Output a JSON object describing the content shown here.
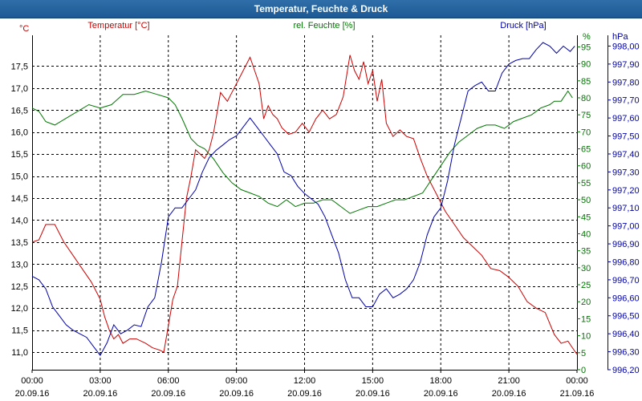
{
  "window": {
    "title": "Temperatur, Feuchte & Druck"
  },
  "colors": {
    "temperature": "#cc0000",
    "humidity": "#007700",
    "pressure": "#0000aa",
    "grid": "#000000",
    "axis_text": "#000000"
  },
  "chart_data": {
    "type": "line",
    "title": "Temperatur, Feuchte & Druck",
    "x_ticks": [
      {
        "h": 0,
        "time": "00:00",
        "date": "20.09.16"
      },
      {
        "h": 3,
        "time": "03:00",
        "date": "20.09.16"
      },
      {
        "h": 6,
        "time": "06:00",
        "date": "20.09.16"
      },
      {
        "h": 9,
        "time": "09:00",
        "date": "20.09.16"
      },
      {
        "h": 12,
        "time": "12:00",
        "date": "20.09.16"
      },
      {
        "h": 15,
        "time": "15:00",
        "date": "20.09.16"
      },
      {
        "h": 18,
        "time": "18:00",
        "date": "20.09.16"
      },
      {
        "h": 21,
        "time": "21:00",
        "date": "20.09.16"
      },
      {
        "h": 24,
        "time": "00:00",
        "date": "21.09.16"
      }
    ],
    "xlim": [
      0,
      24
    ],
    "axes": {
      "temperature": {
        "label": "Temperatur [°C]",
        "unit": "°C",
        "lim": [
          10.6,
          18.2
        ],
        "ticks": [
          "11,0",
          "11,5",
          "12,0",
          "12,5",
          "13,0",
          "13,5",
          "14,0",
          "14,5",
          "15,0",
          "15,5",
          "16,0",
          "16,5",
          "17,0",
          "17,5"
        ],
        "tick_values": [
          11.0,
          11.5,
          12.0,
          12.5,
          13.0,
          13.5,
          14.0,
          14.5,
          15.0,
          15.5,
          16.0,
          16.5,
          17.0,
          17.5
        ]
      },
      "humidity": {
        "label": "rel. Feuchte [%]",
        "unit": "%",
        "lim": [
          0,
          98.4
        ],
        "ticks": [
          "0",
          "5",
          "10",
          "15",
          "20",
          "25",
          "30",
          "35",
          "40",
          "45",
          "50",
          "55",
          "60",
          "65",
          "70",
          "75",
          "80",
          "85",
          "90",
          "95"
        ],
        "tick_values": [
          0,
          5,
          10,
          15,
          20,
          25,
          30,
          35,
          40,
          45,
          50,
          55,
          60,
          65,
          70,
          75,
          80,
          85,
          90,
          95
        ]
      },
      "pressure": {
        "label": "Druck [hPa]",
        "unit": "hPa",
        "lim": [
          996.2,
          998.06
        ],
        "ticks": [
          "996,20",
          "996,30",
          "996,40",
          "996,50",
          "996,60",
          "996,70",
          "996,80",
          "996,90",
          "997,00",
          "997,10",
          "997,20",
          "997,30",
          "997,40",
          "997,50",
          "997,60",
          "997,70",
          "997,80",
          "997,90",
          "998,00"
        ],
        "tick_values": [
          996.2,
          996.3,
          996.4,
          996.5,
          996.6,
          996.7,
          996.8,
          996.9,
          997.0,
          997.1,
          997.2,
          997.3,
          997.4,
          997.5,
          997.6,
          997.7,
          997.8,
          997.9,
          998.0
        ]
      }
    },
    "series": [
      {
        "name": "Temperatur",
        "axis": "temperature",
        "x": [
          0,
          0.3,
          0.6,
          1.0,
          1.4,
          1.8,
          2.2,
          2.6,
          3.0,
          3.2,
          3.4,
          3.6,
          3.8,
          4.0,
          4.3,
          4.6,
          5.0,
          5.3,
          5.6,
          5.8,
          6.0,
          6.2,
          6.4,
          6.6,
          6.8,
          7.0,
          7.2,
          7.4,
          7.6,
          7.8,
          8.0,
          8.3,
          8.6,
          8.9,
          9.2,
          9.6,
          10.0,
          10.2,
          10.4,
          10.6,
          10.8,
          11.0,
          11.3,
          11.6,
          11.9,
          12.2,
          12.5,
          12.8,
          13.1,
          13.4,
          13.7,
          14.0,
          14.2,
          14.4,
          14.6,
          14.8,
          15.0,
          15.2,
          15.4,
          15.6,
          15.9,
          16.2,
          16.5,
          16.8,
          17.1,
          17.4,
          17.8,
          18.2,
          18.6,
          19.0,
          19.4,
          19.8,
          20.2,
          20.6,
          21.0,
          21.4,
          21.8,
          22.2,
          22.6,
          23.0,
          23.3,
          23.6,
          23.8,
          24.0
        ],
        "values": [
          13.5,
          13.55,
          13.9,
          13.9,
          13.5,
          13.2,
          12.9,
          12.6,
          12.2,
          11.8,
          11.5,
          11.3,
          11.4,
          11.2,
          11.3,
          11.3,
          11.2,
          11.1,
          11.05,
          11.0,
          11.6,
          12.2,
          12.5,
          13.5,
          14.5,
          15.0,
          15.6,
          15.5,
          15.4,
          15.6,
          16.0,
          16.9,
          16.7,
          17.0,
          17.3,
          17.7,
          17.1,
          16.3,
          16.6,
          16.4,
          16.3,
          16.1,
          15.95,
          16.0,
          16.2,
          16.0,
          16.3,
          16.5,
          16.3,
          16.4,
          16.8,
          17.75,
          17.4,
          17.2,
          17.6,
          17.1,
          17.4,
          16.7,
          17.2,
          16.2,
          15.9,
          16.05,
          15.9,
          15.85,
          15.4,
          15.0,
          14.6,
          14.2,
          13.9,
          13.6,
          13.4,
          13.2,
          12.9,
          12.85,
          12.7,
          12.5,
          12.15,
          12.0,
          11.9,
          11.4,
          11.2,
          11.25,
          11.1,
          10.95
        ]
      },
      {
        "name": "rel. Feuchte",
        "axis": "humidity",
        "x": [
          0,
          0.3,
          0.6,
          1.0,
          1.5,
          2.0,
          2.5,
          3.0,
          3.5,
          4.0,
          4.5,
          5.0,
          5.5,
          6.0,
          6.3,
          6.6,
          7.0,
          7.3,
          7.6,
          8.0,
          8.4,
          8.8,
          9.2,
          9.6,
          10.0,
          10.4,
          10.8,
          11.2,
          11.6,
          12.0,
          12.4,
          12.8,
          13.2,
          13.6,
          14.0,
          14.4,
          14.8,
          15.2,
          15.6,
          16.0,
          16.4,
          16.8,
          17.2,
          17.6,
          18.0,
          18.4,
          18.8,
          19.2,
          19.6,
          20.0,
          20.4,
          20.8,
          21.2,
          21.6,
          22.0,
          22.4,
          22.8,
          23.0,
          23.3,
          23.6,
          23.8
        ],
        "values": [
          77,
          76,
          73,
          72,
          74,
          76,
          78,
          77,
          78,
          81,
          81,
          82,
          81,
          80,
          78,
          74,
          68,
          66,
          65,
          62,
          58,
          55,
          53,
          52,
          51,
          49,
          48,
          50,
          48,
          49,
          49,
          50,
          50,
          48,
          46,
          47,
          48,
          48,
          49,
          50,
          50,
          51,
          52,
          56,
          60,
          64,
          67,
          69,
          71,
          72,
          72,
          71,
          73,
          74,
          75,
          77,
          78,
          79,
          79,
          82,
          80
        ]
      },
      {
        "name": "Druck",
        "axis": "pressure",
        "x": [
          0,
          0.3,
          0.6,
          0.9,
          1.2,
          1.5,
          1.8,
          2.1,
          2.4,
          2.7,
          3.0,
          3.3,
          3.6,
          3.9,
          4.2,
          4.5,
          4.8,
          5.1,
          5.4,
          5.7,
          6.0,
          6.3,
          6.6,
          6.9,
          7.2,
          7.5,
          7.8,
          8.1,
          8.4,
          8.7,
          9.0,
          9.3,
          9.6,
          9.9,
          10.2,
          10.5,
          10.8,
          11.1,
          11.4,
          11.7,
          12.0,
          12.3,
          12.6,
          12.9,
          13.2,
          13.5,
          13.8,
          14.1,
          14.4,
          14.7,
          15.0,
          15.3,
          15.6,
          15.9,
          16.2,
          16.5,
          16.8,
          17.1,
          17.4,
          17.7,
          18.0,
          18.3,
          18.6,
          18.9,
          19.2,
          19.5,
          19.8,
          20.1,
          20.4,
          20.7,
          21.0,
          21.3,
          21.6,
          21.9,
          22.2,
          22.5,
          22.8,
          23.1,
          23.4,
          23.7,
          23.9
        ],
        "values": [
          996.72,
          996.7,
          996.65,
          996.55,
          996.5,
          996.45,
          996.42,
          996.4,
          996.38,
          996.33,
          996.28,
          996.35,
          996.45,
          996.4,
          996.42,
          996.45,
          996.44,
          996.55,
          996.6,
          996.8,
          997.05,
          997.1,
          997.1,
          997.15,
          997.2,
          997.3,
          997.38,
          997.42,
          997.45,
          997.48,
          997.5,
          997.55,
          997.6,
          997.55,
          997.5,
          997.45,
          997.4,
          997.3,
          997.28,
          997.22,
          997.18,
          997.15,
          997.12,
          997.05,
          996.95,
          996.85,
          996.7,
          996.6,
          996.6,
          996.55,
          996.55,
          996.62,
          996.65,
          996.6,
          996.62,
          996.65,
          996.7,
          996.8,
          996.95,
          997.05,
          997.1,
          997.25,
          997.45,
          997.6,
          997.75,
          997.78,
          997.8,
          997.75,
          997.75,
          997.85,
          997.9,
          997.92,
          997.93,
          997.93,
          997.98,
          998.02,
          998.0,
          997.96,
          998.0,
          997.97,
          998.0
        ]
      }
    ]
  }
}
